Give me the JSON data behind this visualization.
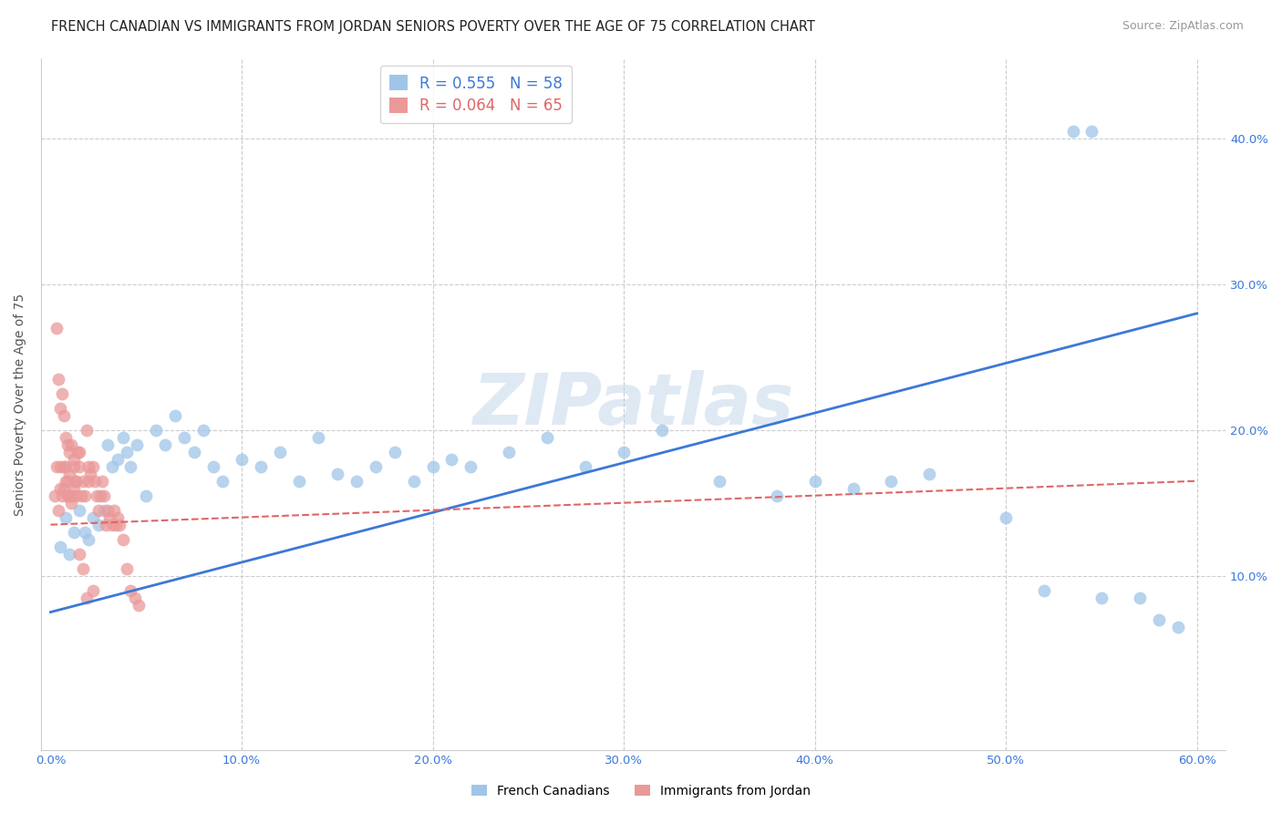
{
  "title": "FRENCH CANADIAN VS IMMIGRANTS FROM JORDAN SENIORS POVERTY OVER THE AGE OF 75 CORRELATION CHART",
  "source": "Source: ZipAtlas.com",
  "ylabel": "Seniors Poverty Over the Age of 75",
  "xlim": [
    0,
    0.6
  ],
  "ylim": [
    -0.02,
    0.45
  ],
  "blue_R": 0.555,
  "blue_N": 58,
  "pink_R": 0.064,
  "pink_N": 65,
  "blue_color": "#9fc5e8",
  "pink_color": "#ea9999",
  "blue_line_color": "#3c78d8",
  "pink_line_color": "#e06666",
  "grid_color": "#cccccc",
  "watermark": "ZIPatlas",
  "background_color": "#ffffff",
  "title_fontsize": 10.5,
  "axis_label_fontsize": 10,
  "tick_fontsize": 9.5,
  "legend_fontsize": 12,
  "source_fontsize": 9,
  "blue_scatter_x": [
    0.005,
    0.008,
    0.01,
    0.012,
    0.015,
    0.018,
    0.02,
    0.022,
    0.025,
    0.028,
    0.03,
    0.032,
    0.035,
    0.038,
    0.04,
    0.042,
    0.045,
    0.05,
    0.055,
    0.06,
    0.065,
    0.07,
    0.075,
    0.08,
    0.085,
    0.09,
    0.1,
    0.11,
    0.12,
    0.13,
    0.14,
    0.15,
    0.16,
    0.17,
    0.18,
    0.19,
    0.2,
    0.21,
    0.22,
    0.24,
    0.26,
    0.28,
    0.3,
    0.32,
    0.35,
    0.38,
    0.4,
    0.42,
    0.44,
    0.46,
    0.5,
    0.52,
    0.55,
    0.57,
    0.58,
    0.59,
    0.535,
    0.545
  ],
  "blue_scatter_y": [
    0.12,
    0.14,
    0.115,
    0.13,
    0.145,
    0.13,
    0.125,
    0.14,
    0.135,
    0.145,
    0.19,
    0.175,
    0.18,
    0.195,
    0.185,
    0.175,
    0.19,
    0.155,
    0.2,
    0.19,
    0.21,
    0.195,
    0.185,
    0.2,
    0.175,
    0.165,
    0.18,
    0.175,
    0.185,
    0.165,
    0.195,
    0.17,
    0.165,
    0.175,
    0.185,
    0.165,
    0.175,
    0.18,
    0.175,
    0.185,
    0.195,
    0.175,
    0.185,
    0.2,
    0.165,
    0.155,
    0.165,
    0.16,
    0.165,
    0.17,
    0.14,
    0.09,
    0.085,
    0.085,
    0.07,
    0.065,
    0.405,
    0.405
  ],
  "pink_scatter_x": [
    0.002,
    0.003,
    0.004,
    0.005,
    0.005,
    0.006,
    0.007,
    0.007,
    0.008,
    0.008,
    0.009,
    0.009,
    0.01,
    0.01,
    0.011,
    0.011,
    0.012,
    0.012,
    0.013,
    0.013,
    0.014,
    0.015,
    0.015,
    0.016,
    0.017,
    0.018,
    0.019,
    0.02,
    0.02,
    0.021,
    0.022,
    0.023,
    0.024,
    0.025,
    0.026,
    0.027,
    0.028,
    0.029,
    0.03,
    0.031,
    0.032,
    0.033,
    0.034,
    0.035,
    0.036,
    0.038,
    0.04,
    0.042,
    0.044,
    0.046,
    0.003,
    0.004,
    0.005,
    0.006,
    0.007,
    0.008,
    0.009,
    0.01,
    0.011,
    0.012,
    0.013,
    0.015,
    0.017,
    0.019,
    0.022
  ],
  "pink_scatter_y": [
    0.155,
    0.175,
    0.145,
    0.16,
    0.175,
    0.155,
    0.16,
    0.175,
    0.165,
    0.175,
    0.155,
    0.165,
    0.155,
    0.17,
    0.15,
    0.155,
    0.16,
    0.175,
    0.155,
    0.165,
    0.185,
    0.175,
    0.185,
    0.155,
    0.165,
    0.155,
    0.2,
    0.175,
    0.165,
    0.17,
    0.175,
    0.165,
    0.155,
    0.145,
    0.155,
    0.165,
    0.155,
    0.135,
    0.145,
    0.14,
    0.135,
    0.145,
    0.135,
    0.14,
    0.135,
    0.125,
    0.105,
    0.09,
    0.085,
    0.08,
    0.27,
    0.235,
    0.215,
    0.225,
    0.21,
    0.195,
    0.19,
    0.185,
    0.19,
    0.18,
    0.165,
    0.115,
    0.105,
    0.085,
    0.09
  ],
  "blue_line_x": [
    0,
    0.6
  ],
  "blue_line_y": [
    0.075,
    0.28
  ],
  "pink_line_x": [
    0,
    0.6
  ],
  "pink_line_y": [
    0.135,
    0.165
  ]
}
